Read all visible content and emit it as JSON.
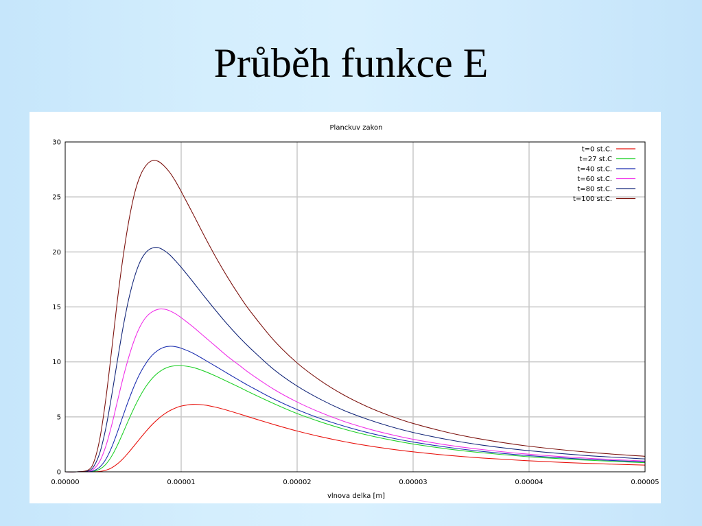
{
  "slide": {
    "title": "Průběh funkce E"
  },
  "chart_data": {
    "type": "line",
    "title": "Planckuv zakon",
    "xlabel": "vlnova delka [m]",
    "ylabel": "",
    "xlim": [
      0,
      5e-05
    ],
    "ylim": [
      0,
      30
    ],
    "grid": true,
    "legend_position": "top-right",
    "x_ticks": [
      "0.00000",
      "0.00001",
      "0.00002",
      "0.00003",
      "0.00004",
      "0.00005"
    ],
    "y_ticks": [
      "0",
      "5",
      "10",
      "15",
      "20",
      "25",
      "30"
    ],
    "x": [
      1e-06,
      2e-06,
      2.5e-06,
      3e-06,
      3.5e-06,
      4e-06,
      4.5e-06,
      5e-06,
      5.5e-06,
      6e-06,
      6.5e-06,
      7e-06,
      7.5e-06,
      8e-06,
      8.5e-06,
      9e-06,
      9.5e-06,
      1e-05,
      1.1e-05,
      1.2e-05,
      1.3e-05,
      1.4e-05,
      1.5e-05,
      1.6e-05,
      1.8e-05,
      2e-05,
      2.2e-05,
      2.4e-05,
      2.6e-05,
      2.8e-05,
      3e-05,
      3.3e-05,
      3.6e-05,
      4e-05,
      4.5e-05,
      5e-05
    ],
    "series": [
      {
        "name": "t=0 st.C.",
        "color": "#e8140f",
        "values": [
          0,
          0,
          0.01,
          0.04,
          0.14,
          0.36,
          0.72,
          1.21,
          1.8,
          2.44,
          3.09,
          3.72,
          4.3,
          4.8,
          5.22,
          5.55,
          5.8,
          5.98,
          6.13,
          6.08,
          5.87,
          5.59,
          5.27,
          4.94,
          4.3,
          3.71,
          3.2,
          2.76,
          2.39,
          2.08,
          1.82,
          1.5,
          1.25,
          1.0,
          0.77,
          0.61
        ]
      },
      {
        "name": "t=27 st.C",
        "color": "#22d02a",
        "values": [
          0,
          0.01,
          0.06,
          0.25,
          0.68,
          1.41,
          2.41,
          3.58,
          4.79,
          5.94,
          6.96,
          7.82,
          8.5,
          9.0,
          9.35,
          9.56,
          9.65,
          9.66,
          9.5,
          9.15,
          8.7,
          8.2,
          7.7,
          7.18,
          6.2,
          5.3,
          4.55,
          3.9,
          3.36,
          2.91,
          2.53,
          2.08,
          1.73,
          1.37,
          1.06,
          0.83
        ]
      },
      {
        "name": "t=40 st.C.",
        "color": "#1c2fb0",
        "values": [
          0,
          0.02,
          0.12,
          0.45,
          1.13,
          2.21,
          3.6,
          5.13,
          6.6,
          7.93,
          9.05,
          9.93,
          10.6,
          11.05,
          11.32,
          11.42,
          11.38,
          11.24,
          10.8,
          10.2,
          9.58,
          8.95,
          8.33,
          7.73,
          6.62,
          5.66,
          4.85,
          4.17,
          3.59,
          3.11,
          2.71,
          2.23,
          1.85,
          1.47,
          1.14,
          0.9
        ]
      },
      {
        "name": "t=60 st.C.",
        "color": "#f030e8",
        "values": [
          0,
          0.05,
          0.3,
          1.0,
          2.32,
          4.2,
          6.4,
          8.58,
          10.5,
          12.1,
          13.3,
          14.1,
          14.55,
          14.78,
          14.8,
          14.65,
          14.38,
          14.02,
          13.2,
          12.3,
          11.4,
          10.5,
          9.7,
          8.9,
          7.5,
          6.35,
          5.4,
          4.6,
          3.95,
          3.41,
          2.96,
          2.43,
          2.02,
          1.6,
          1.24,
          0.98
        ]
      },
      {
        "name": "t=80 st.C.",
        "color": "#15287a",
        "values": [
          0,
          0.09,
          0.55,
          1.78,
          3.95,
          6.88,
          10.1,
          13.2,
          15.8,
          17.8,
          19.2,
          20.0,
          20.35,
          20.4,
          20.15,
          19.75,
          19.2,
          18.6,
          17.3,
          15.95,
          14.65,
          13.4,
          12.25,
          11.2,
          9.3,
          7.8,
          6.6,
          5.6,
          4.8,
          4.13,
          3.58,
          2.93,
          2.42,
          1.92,
          1.48,
          1.17
        ]
      },
      {
        "name": "t=100 st.C.",
        "color": "#7d1410",
        "values": [
          0,
          0.17,
          0.98,
          3.1,
          6.6,
          11.0,
          15.6,
          19.6,
          22.9,
          25.4,
          27.0,
          27.9,
          28.3,
          28.25,
          27.85,
          27.25,
          26.45,
          25.5,
          23.5,
          21.45,
          19.5,
          17.7,
          16.05,
          14.55,
          11.95,
          9.9,
          8.3,
          7.0,
          5.95,
          5.1,
          4.4,
          3.58,
          2.95,
          2.33,
          1.79,
          1.41
        ]
      }
    ]
  }
}
